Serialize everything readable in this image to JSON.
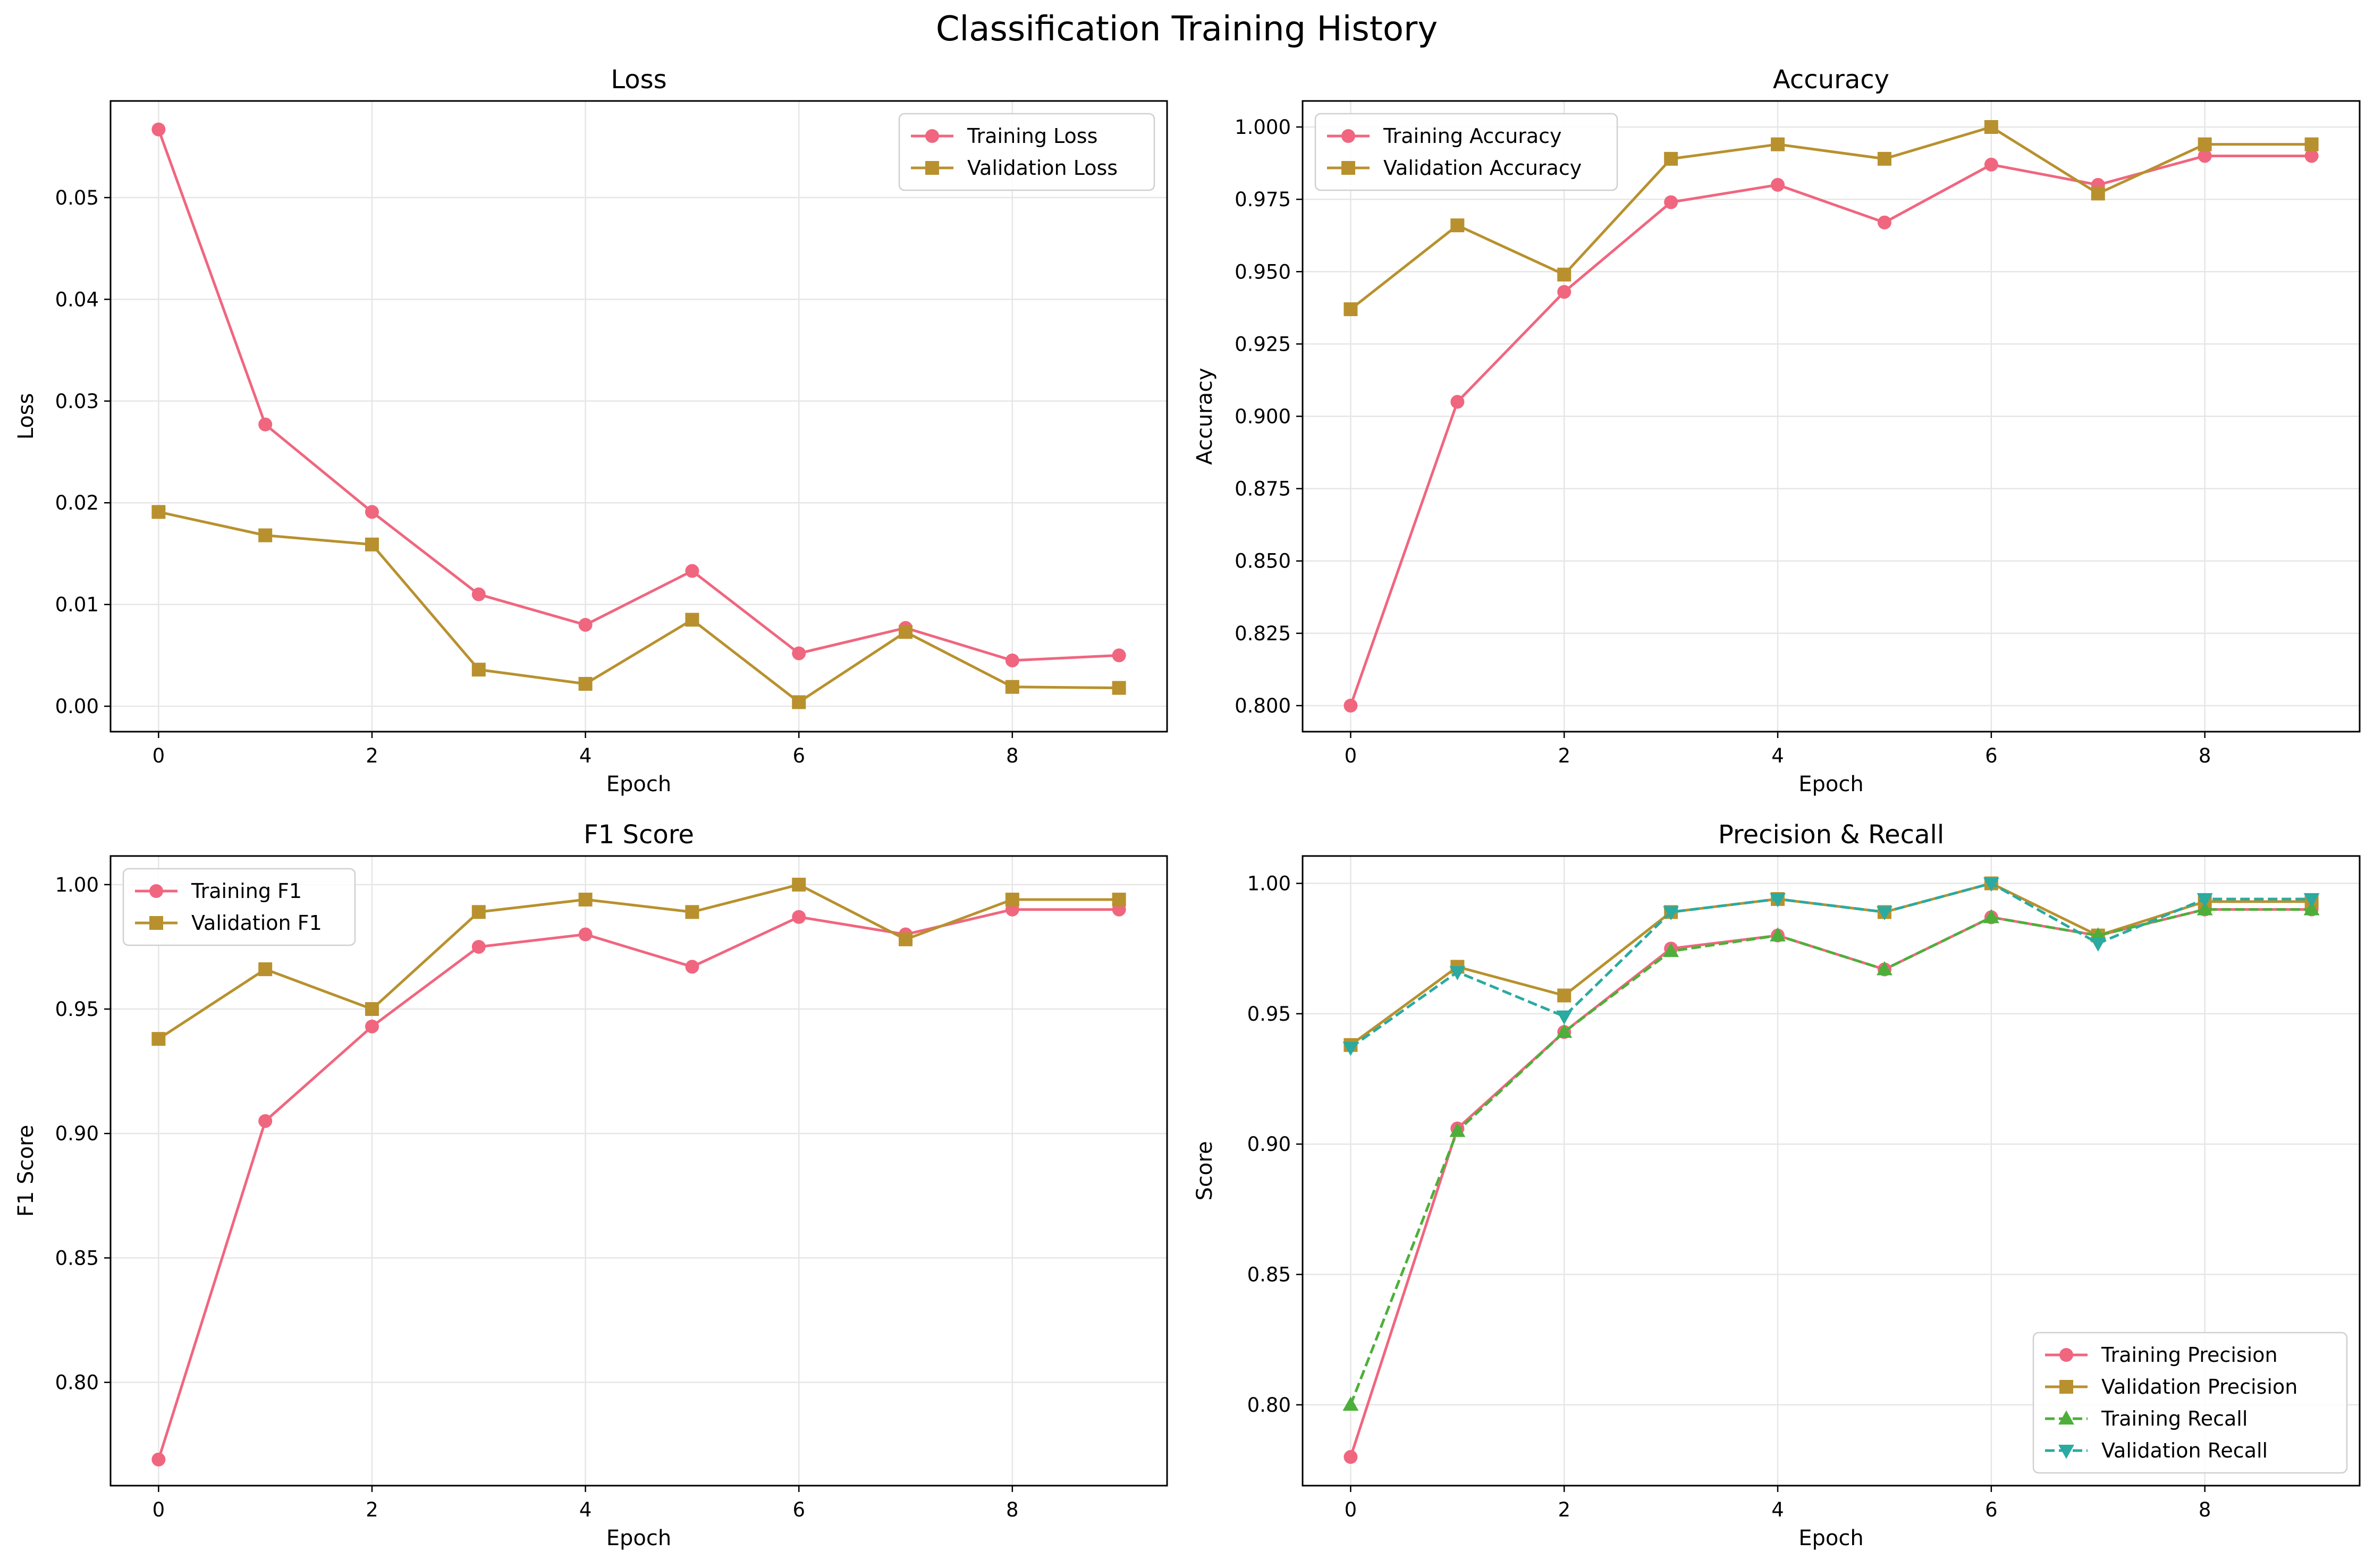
{
  "figure": {
    "title": "Classification Training History"
  },
  "colors": {
    "training": "#f0667f",
    "validation": "#b8912e",
    "training_recall": "#4daf3a",
    "validation_recall": "#2aaaa0"
  },
  "chart_data": [
    {
      "type": "line",
      "title": "Loss",
      "xlabel": "Epoch",
      "ylabel": "Loss",
      "xlim": [
        -0.45,
        9.45
      ],
      "ylim": [
        -0.0025,
        0.0595
      ],
      "xticks": [
        0,
        2,
        4,
        6,
        8
      ],
      "yticks": [
        0.0,
        0.01,
        0.02,
        0.03,
        0.04,
        0.05
      ],
      "ytick_labels": [
        "0.00",
        "0.01",
        "0.02",
        "0.03",
        "0.04",
        "0.05"
      ],
      "grid": true,
      "legend": "upper right",
      "x": [
        0,
        1,
        2,
        3,
        4,
        5,
        6,
        7,
        8,
        9
      ],
      "series": [
        {
          "name": "Training Loss",
          "color": "#f0667f",
          "marker": "circle",
          "dashed": false,
          "values": [
            0.0567,
            0.0277,
            0.0191,
            0.011,
            0.008,
            0.0133,
            0.0052,
            0.0077,
            0.0045,
            0.005
          ]
        },
        {
          "name": "Validation Loss",
          "color": "#b8912e",
          "marker": "square",
          "dashed": false,
          "values": [
            0.0191,
            0.0168,
            0.0159,
            0.0036,
            0.0022,
            0.0085,
            0.0004,
            0.0073,
            0.0019,
            0.0018
          ]
        }
      ]
    },
    {
      "type": "line",
      "title": "Accuracy",
      "xlabel": "Epoch",
      "ylabel": "Accuracy",
      "xlim": [
        -0.45,
        9.45
      ],
      "ylim": [
        0.791,
        1.009
      ],
      "xticks": [
        0,
        2,
        4,
        6,
        8
      ],
      "yticks": [
        0.8,
        0.825,
        0.85,
        0.875,
        0.9,
        0.925,
        0.95,
        0.975,
        1.0
      ],
      "ytick_labels": [
        "0.800",
        "0.825",
        "0.850",
        "0.875",
        "0.900",
        "0.925",
        "0.950",
        "0.975",
        "1.000"
      ],
      "grid": true,
      "legend": "upper left",
      "x": [
        0,
        1,
        2,
        3,
        4,
        5,
        6,
        7,
        8,
        9
      ],
      "series": [
        {
          "name": "Training Accuracy",
          "color": "#f0667f",
          "marker": "circle",
          "dashed": false,
          "values": [
            0.8,
            0.905,
            0.943,
            0.974,
            0.98,
            0.967,
            0.987,
            0.98,
            0.99,
            0.99
          ]
        },
        {
          "name": "Validation Accuracy",
          "color": "#b8912e",
          "marker": "square",
          "dashed": false,
          "values": [
            0.937,
            0.966,
            0.949,
            0.989,
            0.994,
            0.989,
            1.0,
            0.977,
            0.994,
            0.994
          ]
        }
      ]
    },
    {
      "type": "line",
      "title": "F1 Score",
      "xlabel": "Epoch",
      "ylabel": "F1 Score",
      "xlim": [
        -0.45,
        9.45
      ],
      "ylim": [
        0.7585,
        1.0115
      ],
      "xticks": [
        0,
        2,
        4,
        6,
        8
      ],
      "yticks": [
        0.8,
        0.85,
        0.9,
        0.95,
        1.0
      ],
      "ytick_labels": [
        "0.80",
        "0.85",
        "0.90",
        "0.95",
        "1.00"
      ],
      "grid": true,
      "legend": "upper left",
      "x": [
        0,
        1,
        2,
        3,
        4,
        5,
        6,
        7,
        8,
        9
      ],
      "series": [
        {
          "name": "Training F1",
          "color": "#f0667f",
          "marker": "circle",
          "dashed": false,
          "values": [
            0.769,
            0.905,
            0.943,
            0.975,
            0.98,
            0.967,
            0.987,
            0.98,
            0.99,
            0.99
          ]
        },
        {
          "name": "Validation F1",
          "color": "#b8912e",
          "marker": "square",
          "dashed": false,
          "values": [
            0.938,
            0.966,
            0.95,
            0.989,
            0.994,
            0.989,
            1.0,
            0.978,
            0.994,
            0.994
          ]
        }
      ]
    },
    {
      "type": "line",
      "title": "Precision & Recall",
      "xlabel": "Epoch",
      "ylabel": "Score",
      "xlim": [
        -0.45,
        9.45
      ],
      "ylim": [
        0.769,
        1.0105
      ],
      "xticks": [
        0,
        2,
        4,
        6,
        8
      ],
      "yticks": [
        0.8,
        0.85,
        0.9,
        0.95,
        1.0
      ],
      "ytick_labels": [
        "0.80",
        "0.85",
        "0.90",
        "0.95",
        "1.00"
      ],
      "grid": true,
      "legend": "lower right",
      "x": [
        0,
        1,
        2,
        3,
        4,
        5,
        6,
        7,
        8,
        9
      ],
      "series": [
        {
          "name": "Training Precision",
          "color": "#f0667f",
          "marker": "circle",
          "dashed": false,
          "values": [
            0.78,
            0.906,
            0.943,
            0.975,
            0.98,
            0.967,
            0.987,
            0.98,
            0.99,
            0.99
          ]
        },
        {
          "name": "Validation Precision",
          "color": "#b8912e",
          "marker": "square",
          "dashed": false,
          "values": [
            0.938,
            0.968,
            0.957,
            0.989,
            0.994,
            0.989,
            1.0,
            0.98,
            0.993,
            0.993
          ]
        },
        {
          "name": "Training Recall",
          "color": "#4daf3a",
          "marker": "triangle-up",
          "dashed": true,
          "values": [
            0.8,
            0.905,
            0.943,
            0.974,
            0.98,
            0.967,
            0.987,
            0.98,
            0.99,
            0.99
          ]
        },
        {
          "name": "Validation Recall",
          "color": "#2aaaa0",
          "marker": "triangle-down",
          "dashed": true,
          "values": [
            0.937,
            0.966,
            0.949,
            0.989,
            0.994,
            0.989,
            1.0,
            0.977,
            0.994,
            0.994
          ]
        }
      ]
    }
  ]
}
